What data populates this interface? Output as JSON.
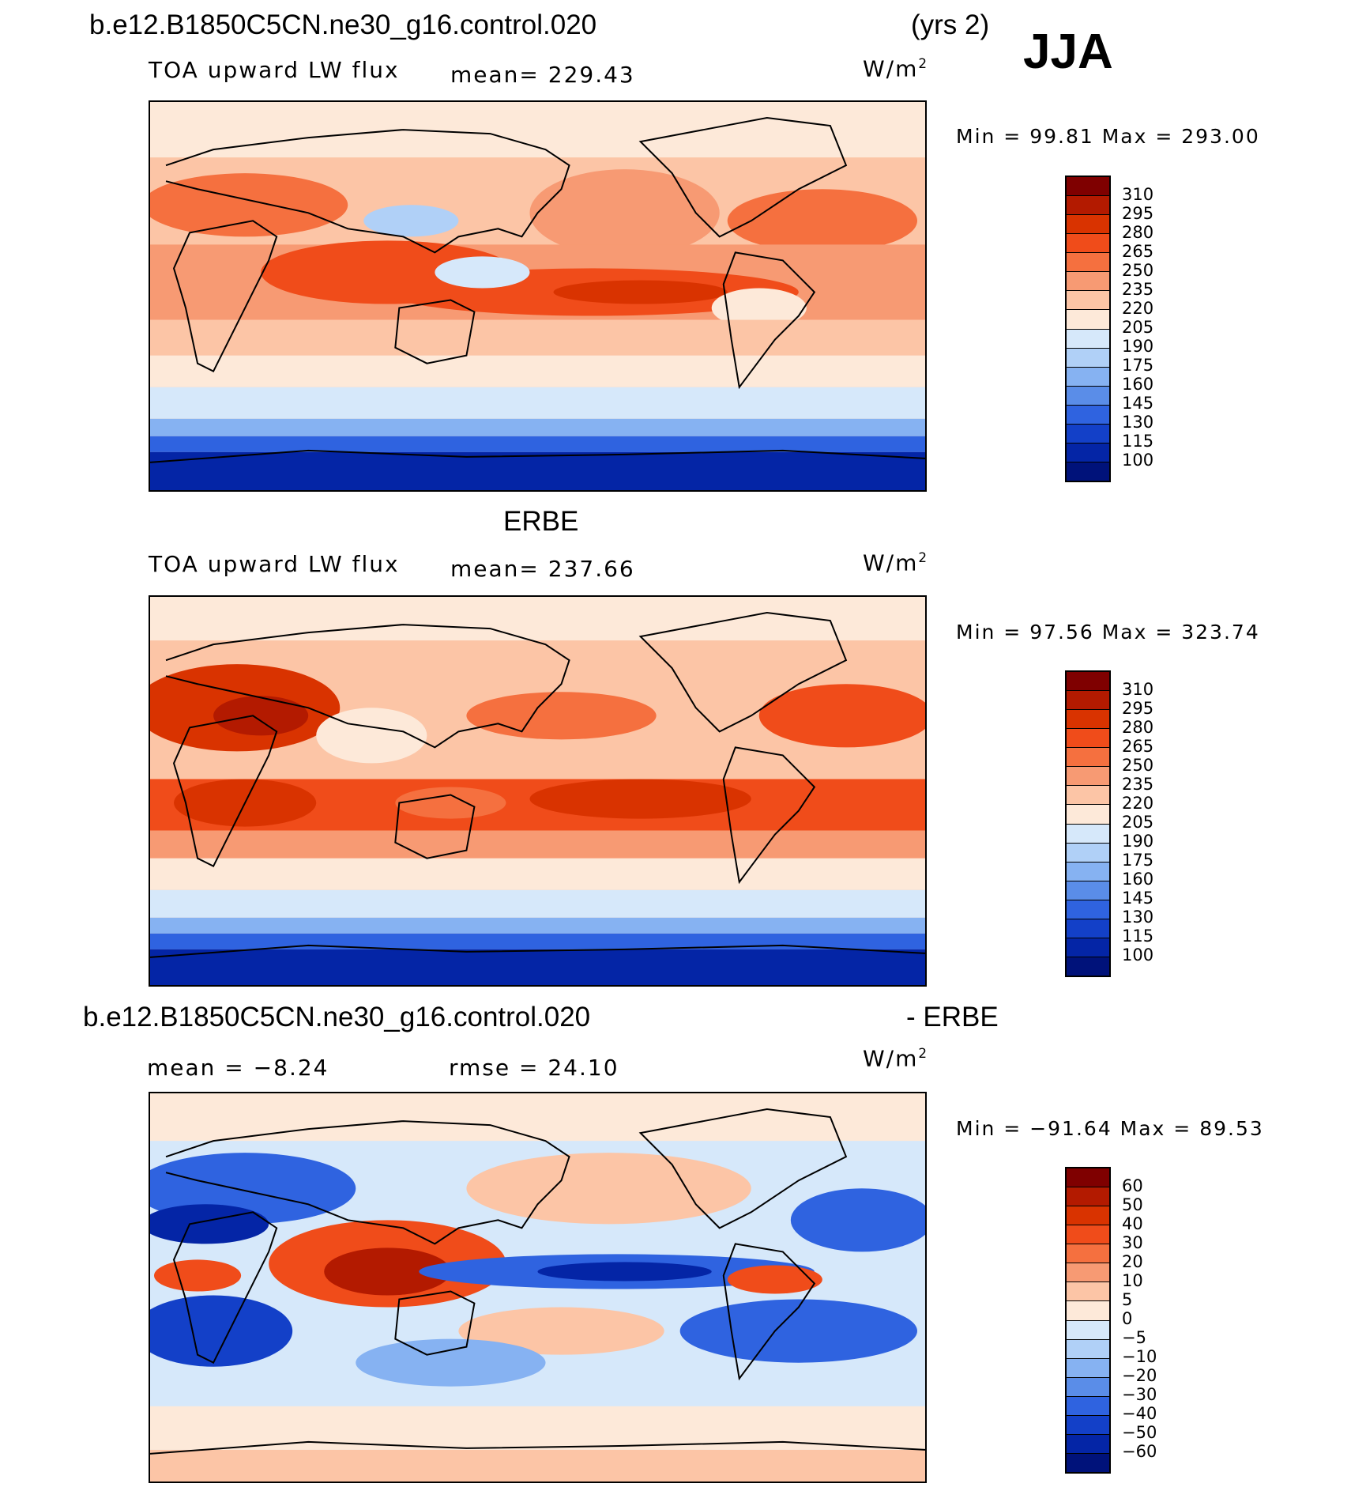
{
  "figure": {
    "case_name": "b.e12.B1850C5CN.ne30_g16.control.020",
    "years": "(yrs 2)",
    "season": "JJA"
  },
  "panels": [
    {
      "title": "b.e12.B1850C5CN.ne30_g16.control.020",
      "variable": "TOA upward LW flux",
      "mean_label": "mean= 229.43",
      "units_base": "W/m",
      "units_exp": "2",
      "minmax_label": "Min =   99.81 Max = 293.00",
      "colorbar": "absolute"
    },
    {
      "title": "ERBE",
      "variable": "TOA upward LW flux",
      "mean_label": "mean= 237.66",
      "units_base": "W/m",
      "units_exp": "2",
      "minmax_label": "Min =   97.56 Max = 323.74",
      "colorbar": "absolute"
    },
    {
      "title": "b.e12.B1850C5CN.ne30_g16.control.020",
      "title_suffix": "- ERBE",
      "mean_label": "mean =  −8.24",
      "rmse_label": "rmse =   24.10",
      "units_base": "W/m",
      "units_exp": "2",
      "minmax_label": "Min = −91.64 Max =   89.53",
      "colorbar": "difference"
    }
  ],
  "colorbars": {
    "absolute": {
      "levels": [
        "310",
        "295",
        "280",
        "265",
        "250",
        "235",
        "220",
        "205",
        "190",
        "175",
        "160",
        "145",
        "130",
        "115",
        "100"
      ],
      "colors": [
        "#7f0000",
        "#b31a00",
        "#d93300",
        "#f04c1a",
        "#f5703f",
        "#f79a73",
        "#fcc5a6",
        "#fde9d9",
        "#d6e8fa",
        "#b0d0f7",
        "#86b2f2",
        "#5a8de8",
        "#2f63e0",
        "#1340c8",
        "#0425a6",
        "#00127a"
      ]
    },
    "difference": {
      "levels": [
        "60",
        "50",
        "40",
        "30",
        "20",
        "10",
        "5",
        "0",
        "−5",
        "−10",
        "−20",
        "−30",
        "−40",
        "−50",
        "−60"
      ],
      "colors": [
        "#7f0000",
        "#b31a00",
        "#d93300",
        "#f04c1a",
        "#f5703f",
        "#f79a73",
        "#fcc5a6",
        "#fde9d9",
        "#d6e8fa",
        "#b0d0f7",
        "#86b2f2",
        "#5a8de8",
        "#2f63e0",
        "#1340c8",
        "#0425a6",
        "#00127a"
      ]
    }
  }
}
